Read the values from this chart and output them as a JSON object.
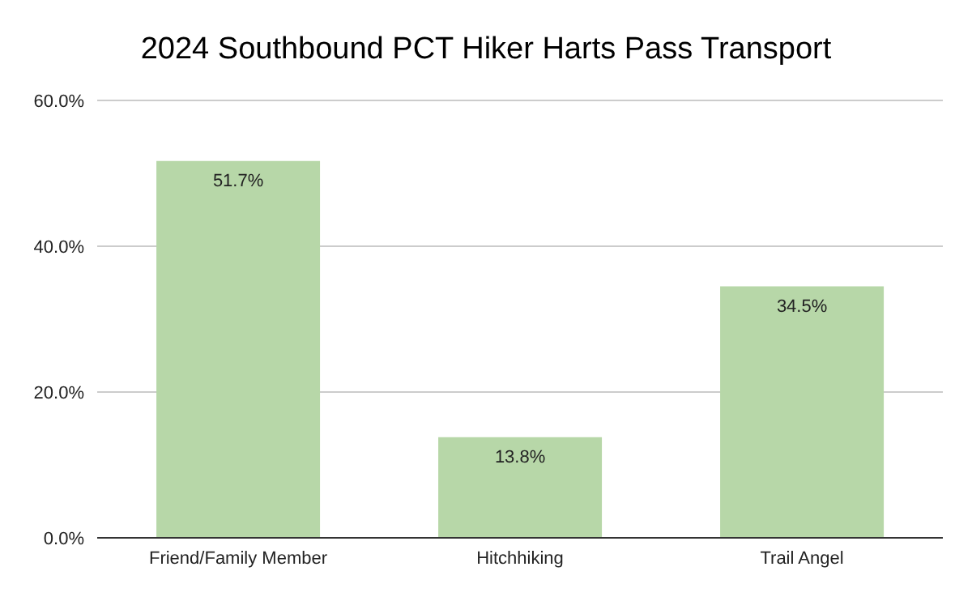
{
  "chart_data": {
    "type": "bar",
    "title": "2024 Southbound PCT Hiker Harts Pass Transport",
    "categories": [
      "Friend/Family Member",
      "Hitchhiking",
      "Trail Angel"
    ],
    "values": [
      51.7,
      13.8,
      34.5
    ],
    "value_labels": [
      "51.7%",
      "13.8%",
      "34.5%"
    ],
    "color": "#b7d7a8",
    "ylim": [
      0,
      60
    ],
    "yticks": [
      {
        "value": 0,
        "label": "0.0%"
      },
      {
        "value": 20,
        "label": "20.0%"
      },
      {
        "value": 40,
        "label": "40.0%"
      },
      {
        "value": 60,
        "label": "60.0%"
      }
    ],
    "grid": "y"
  }
}
